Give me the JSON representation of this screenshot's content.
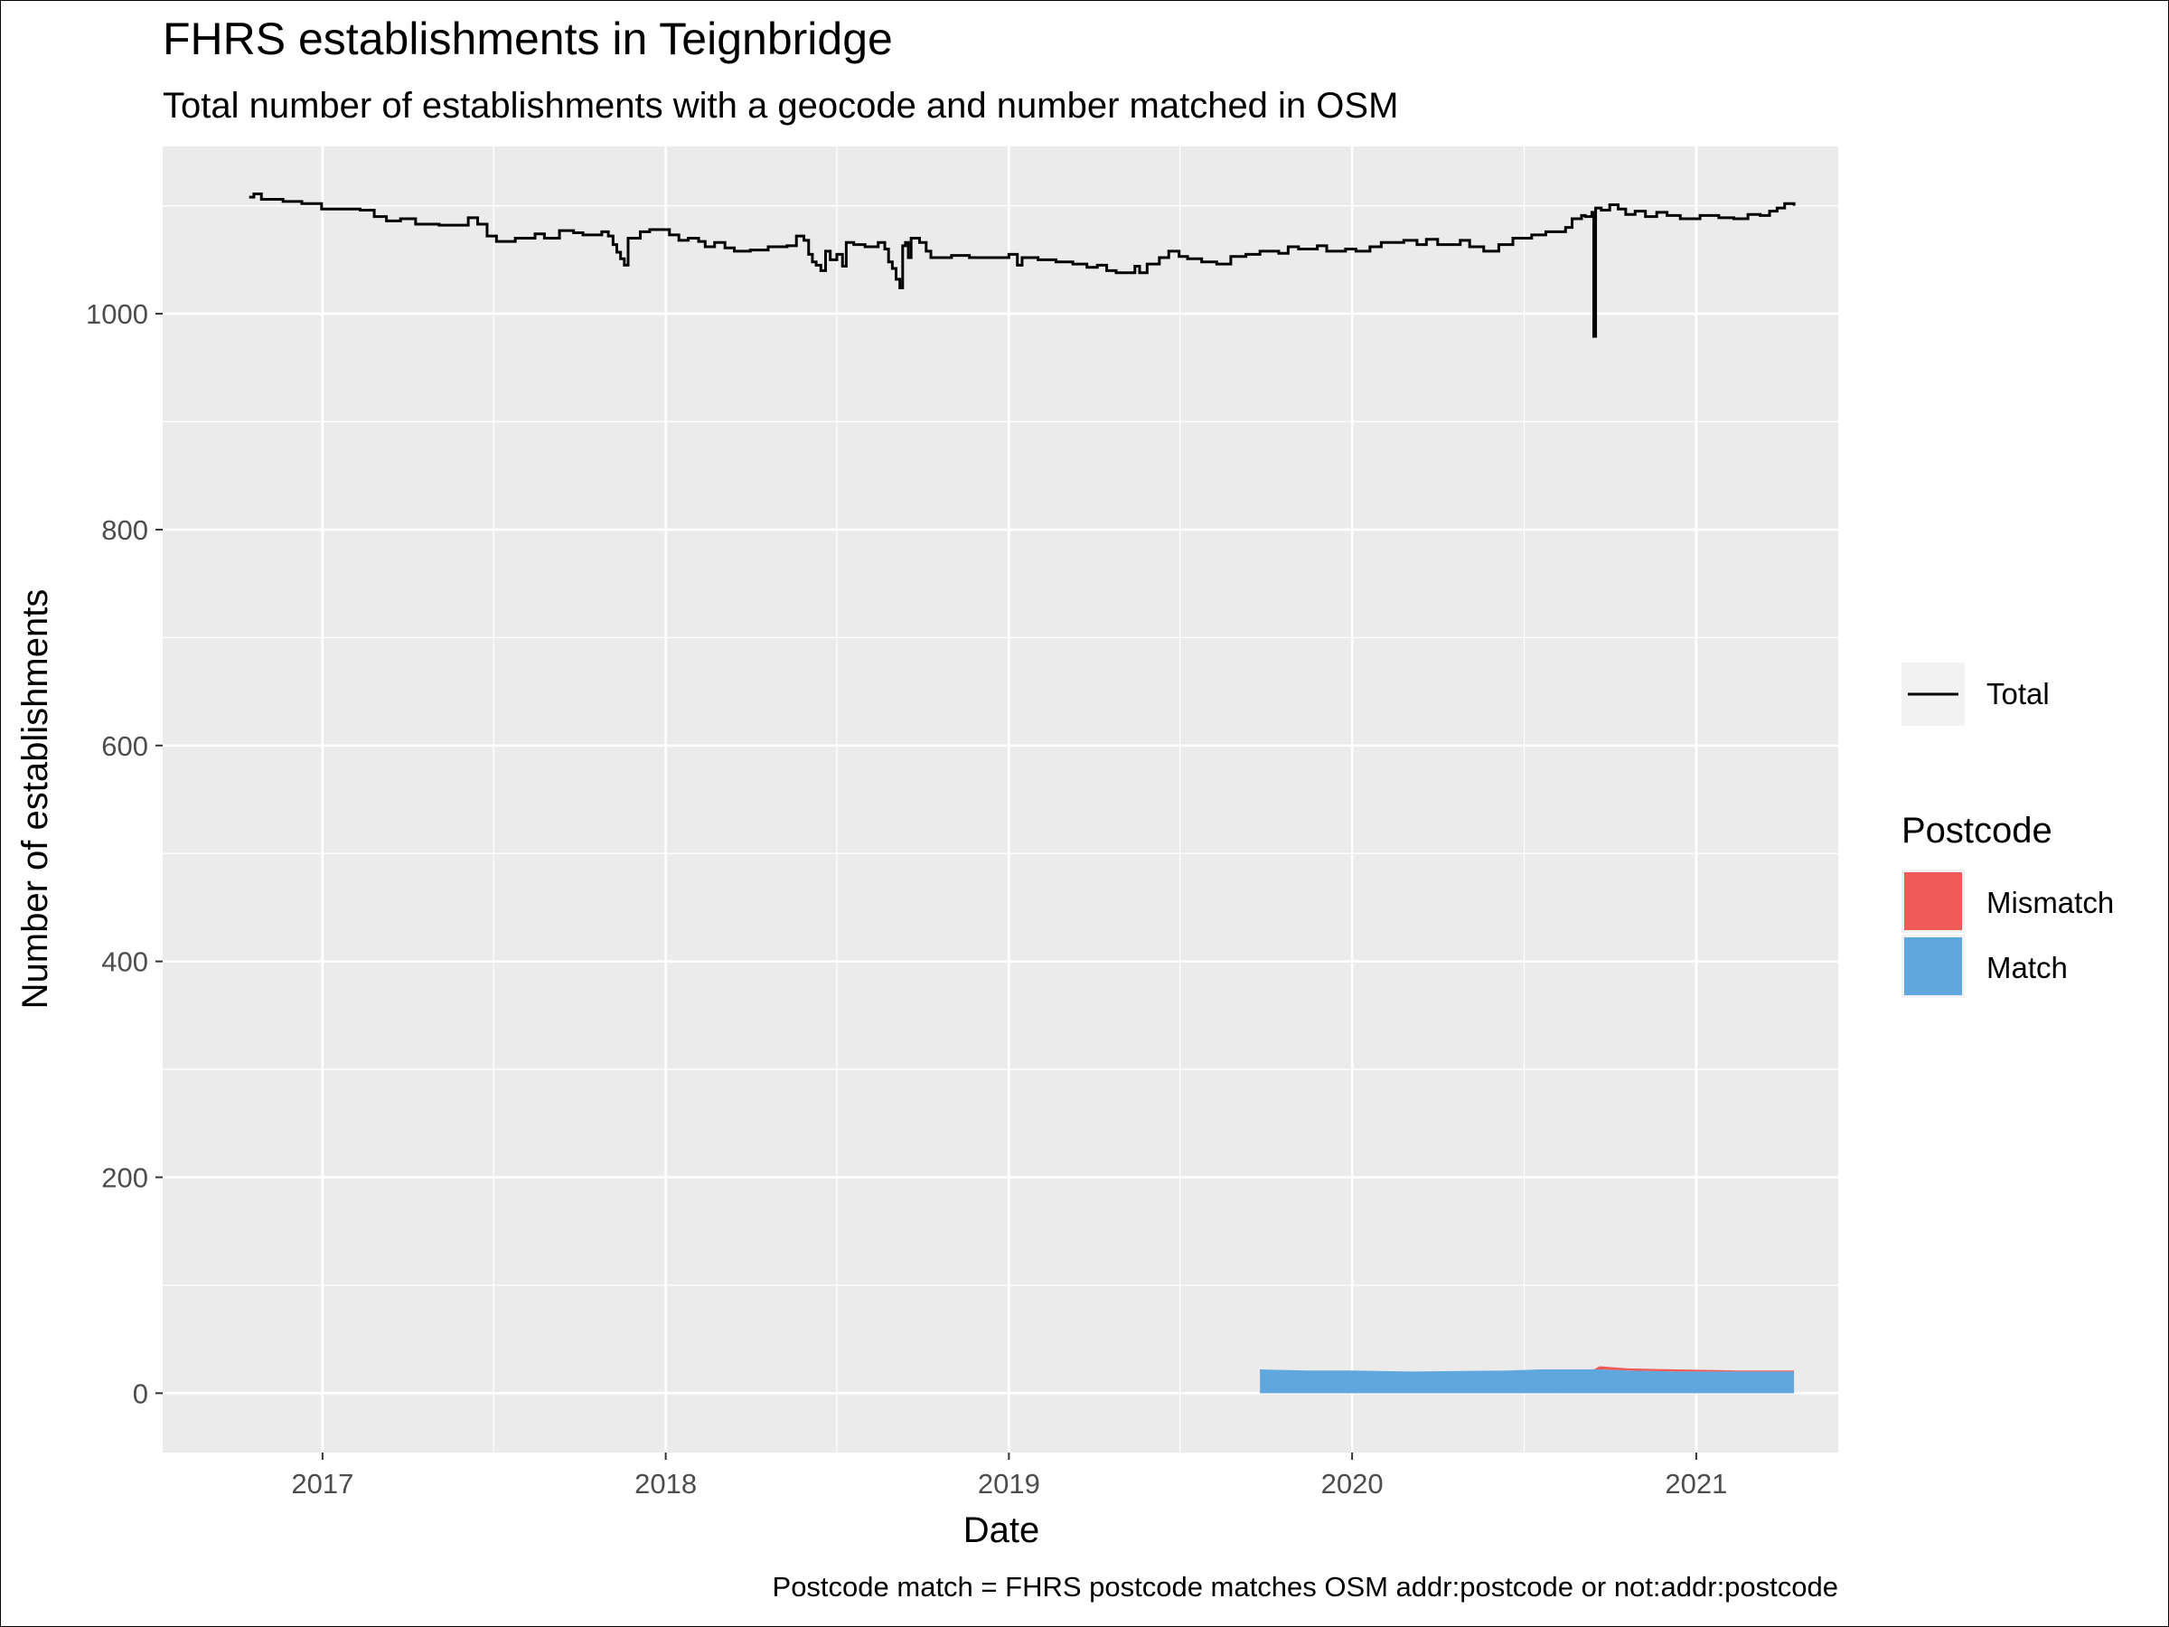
{
  "chart_data": {
    "type": "line",
    "title": "FHRS establishments in Teignbridge",
    "subtitle": "Total number of establishments with a geocode and number matched in OSM",
    "xlabel": "Date",
    "ylabel": "Number of establishments",
    "caption": "Postcode match = FHRS postcode matches OSM addr:postcode or not:addr:postcode",
    "xlim": [
      "2016-07-15",
      "2021-06-01"
    ],
    "ylim": [
      -55,
      1155
    ],
    "x_ticks": [
      "2017",
      "2018",
      "2019",
      "2020",
      "2021"
    ],
    "y_ticks": [
      0,
      200,
      400,
      600,
      800,
      1000
    ],
    "grid": true,
    "legend_position": "right",
    "total_legend_label": "Total",
    "fill_legend_title": "Postcode",
    "colors": {
      "total": "#000000",
      "Mismatch": "#f05a57",
      "Match": "#5fa7dc",
      "panel": "#ebebeb",
      "grid": "#ffffff"
    },
    "series": [
      {
        "name": "Total",
        "type": "step",
        "points": [
          [
            "2016-10-15",
            1108
          ],
          [
            "2016-10-20",
            1111
          ],
          [
            "2016-10-28",
            1106
          ],
          [
            "2016-11-20",
            1104
          ],
          [
            "2016-12-10",
            1102
          ],
          [
            "2016-12-31",
            1097
          ],
          [
            "2017-02-10",
            1096
          ],
          [
            "2017-02-25",
            1090
          ],
          [
            "2017-03-10",
            1086
          ],
          [
            "2017-03-25",
            1088
          ],
          [
            "2017-04-10",
            1083
          ],
          [
            "2017-05-05",
            1082
          ],
          [
            "2017-05-25",
            1082
          ],
          [
            "2017-06-05",
            1089
          ],
          [
            "2017-06-15",
            1083
          ],
          [
            "2017-06-25",
            1072
          ],
          [
            "2017-07-05",
            1067
          ],
          [
            "2017-07-25",
            1070
          ],
          [
            "2017-08-15",
            1074
          ],
          [
            "2017-08-25",
            1070
          ],
          [
            "2017-09-10",
            1077
          ],
          [
            "2017-09-25",
            1075
          ],
          [
            "2017-10-05",
            1073
          ],
          [
            "2017-10-25",
            1076
          ],
          [
            "2017-11-01",
            1072
          ],
          [
            "2017-11-06",
            1064
          ],
          [
            "2017-11-10",
            1057
          ],
          [
            "2017-11-14",
            1051
          ],
          [
            "2017-11-18",
            1045
          ],
          [
            "2017-11-22",
            1070
          ],
          [
            "2017-12-05",
            1076
          ],
          [
            "2017-12-15",
            1078
          ],
          [
            "2018-01-05",
            1073
          ],
          [
            "2018-01-15",
            1068
          ],
          [
            "2018-01-25",
            1070
          ],
          [
            "2018-02-05",
            1067
          ],
          [
            "2018-02-12",
            1062
          ],
          [
            "2018-02-22",
            1066
          ],
          [
            "2018-03-05",
            1061
          ],
          [
            "2018-03-15",
            1058
          ],
          [
            "2018-04-01",
            1059
          ],
          [
            "2018-04-20",
            1062
          ],
          [
            "2018-05-10",
            1063
          ],
          [
            "2018-05-20",
            1072
          ],
          [
            "2018-05-28",
            1068
          ],
          [
            "2018-06-02",
            1055
          ],
          [
            "2018-06-06",
            1048
          ],
          [
            "2018-06-10",
            1045
          ],
          [
            "2018-06-15",
            1040
          ],
          [
            "2018-06-20",
            1058
          ],
          [
            "2018-06-25",
            1050
          ],
          [
            "2018-07-02",
            1055
          ],
          [
            "2018-07-08",
            1044
          ],
          [
            "2018-07-12",
            1066
          ],
          [
            "2018-07-20",
            1064
          ],
          [
            "2018-08-01",
            1062
          ],
          [
            "2018-08-15",
            1066
          ],
          [
            "2018-08-22",
            1060
          ],
          [
            "2018-08-26",
            1048
          ],
          [
            "2018-08-30",
            1042
          ],
          [
            "2018-09-03",
            1032
          ],
          [
            "2018-09-07",
            1024
          ],
          [
            "2018-09-10",
            1063
          ],
          [
            "2018-09-13",
            1066
          ],
          [
            "2018-09-16",
            1052
          ],
          [
            "2018-09-19",
            1070
          ],
          [
            "2018-09-28",
            1066
          ],
          [
            "2018-10-05",
            1058
          ],
          [
            "2018-10-10",
            1052
          ],
          [
            "2018-11-01",
            1054
          ],
          [
            "2018-11-20",
            1052
          ],
          [
            "2018-12-10",
            1052
          ],
          [
            "2019-01-01",
            1055
          ],
          [
            "2019-01-10",
            1045
          ],
          [
            "2019-01-15",
            1052
          ],
          [
            "2019-02-01",
            1050
          ],
          [
            "2019-02-20",
            1048
          ],
          [
            "2019-03-10",
            1046
          ],
          [
            "2019-03-25",
            1043
          ],
          [
            "2019-04-05",
            1045
          ],
          [
            "2019-04-15",
            1040
          ],
          [
            "2019-04-25",
            1038
          ],
          [
            "2019-05-15",
            1044
          ],
          [
            "2019-05-20",
            1038
          ],
          [
            "2019-05-28",
            1046
          ],
          [
            "2019-06-10",
            1052
          ],
          [
            "2019-06-20",
            1058
          ],
          [
            "2019-07-01",
            1053
          ],
          [
            "2019-07-10",
            1051
          ],
          [
            "2019-07-25",
            1048
          ],
          [
            "2019-08-10",
            1046
          ],
          [
            "2019-08-25",
            1053
          ],
          [
            "2019-09-10",
            1055
          ],
          [
            "2019-09-25",
            1058
          ],
          [
            "2019-10-15",
            1056
          ],
          [
            "2019-10-25",
            1062
          ],
          [
            "2019-11-05",
            1060
          ],
          [
            "2019-11-25",
            1063
          ],
          [
            "2019-12-05",
            1058
          ],
          [
            "2019-12-25",
            1060
          ],
          [
            "2020-01-05",
            1058
          ],
          [
            "2020-01-20",
            1062
          ],
          [
            "2020-02-01",
            1066
          ],
          [
            "2020-02-25",
            1068
          ],
          [
            "2020-03-10",
            1064
          ],
          [
            "2020-03-20",
            1069
          ],
          [
            "2020-04-01",
            1064
          ],
          [
            "2020-04-25",
            1068
          ],
          [
            "2020-05-05",
            1062
          ],
          [
            "2020-05-20",
            1058
          ],
          [
            "2020-06-05",
            1064
          ],
          [
            "2020-06-20",
            1070
          ],
          [
            "2020-07-10",
            1073
          ],
          [
            "2020-07-25",
            1076
          ],
          [
            "2020-08-15",
            1080
          ],
          [
            "2020-08-22",
            1088
          ],
          [
            "2020-09-01",
            1091
          ],
          [
            "2020-09-05",
            1090
          ],
          [
            "2020-09-12",
            1094
          ],
          [
            "2020-09-14",
            979
          ],
          [
            "2020-09-16",
            1098
          ],
          [
            "2020-09-22",
            1096
          ],
          [
            "2020-10-01",
            1101
          ],
          [
            "2020-10-10",
            1097
          ],
          [
            "2020-10-18",
            1092
          ],
          [
            "2020-10-28",
            1095
          ],
          [
            "2020-11-08",
            1090
          ],
          [
            "2020-11-20",
            1094
          ],
          [
            "2020-12-01",
            1091
          ],
          [
            "2020-12-15",
            1088
          ],
          [
            "2021-01-05",
            1091
          ],
          [
            "2021-01-25",
            1089
          ],
          [
            "2021-02-10",
            1088
          ],
          [
            "2021-02-25",
            1092
          ],
          [
            "2021-03-10",
            1091
          ],
          [
            "2021-03-20",
            1095
          ],
          [
            "2021-03-28",
            1098
          ],
          [
            "2021-04-05",
            1102
          ],
          [
            "2021-04-15",
            1100
          ]
        ]
      },
      {
        "name": "Match",
        "type": "area",
        "points": [
          [
            "2019-09-25",
            22
          ],
          [
            "2019-11-15",
            21
          ],
          [
            "2020-01-01",
            21
          ],
          [
            "2020-03-05",
            20
          ],
          [
            "2020-06-15",
            21
          ],
          [
            "2020-07-20",
            22
          ],
          [
            "2020-08-05",
            22
          ],
          [
            "2020-09-20",
            22
          ],
          [
            "2020-10-20",
            21
          ],
          [
            "2020-12-10",
            20
          ],
          [
            "2021-02-15",
            20
          ],
          [
            "2021-04-15",
            20
          ]
        ]
      },
      {
        "name": "Mismatch",
        "type": "area",
        "points": [
          [
            "2019-09-25",
            0
          ],
          [
            "2020-08-05",
            0
          ],
          [
            "2020-08-10",
            3
          ],
          [
            "2020-09-20",
            3
          ],
          [
            "2020-10-20",
            2
          ],
          [
            "2020-12-10",
            2
          ],
          [
            "2021-02-15",
            1
          ],
          [
            "2021-04-15",
            1
          ]
        ]
      }
    ]
  }
}
